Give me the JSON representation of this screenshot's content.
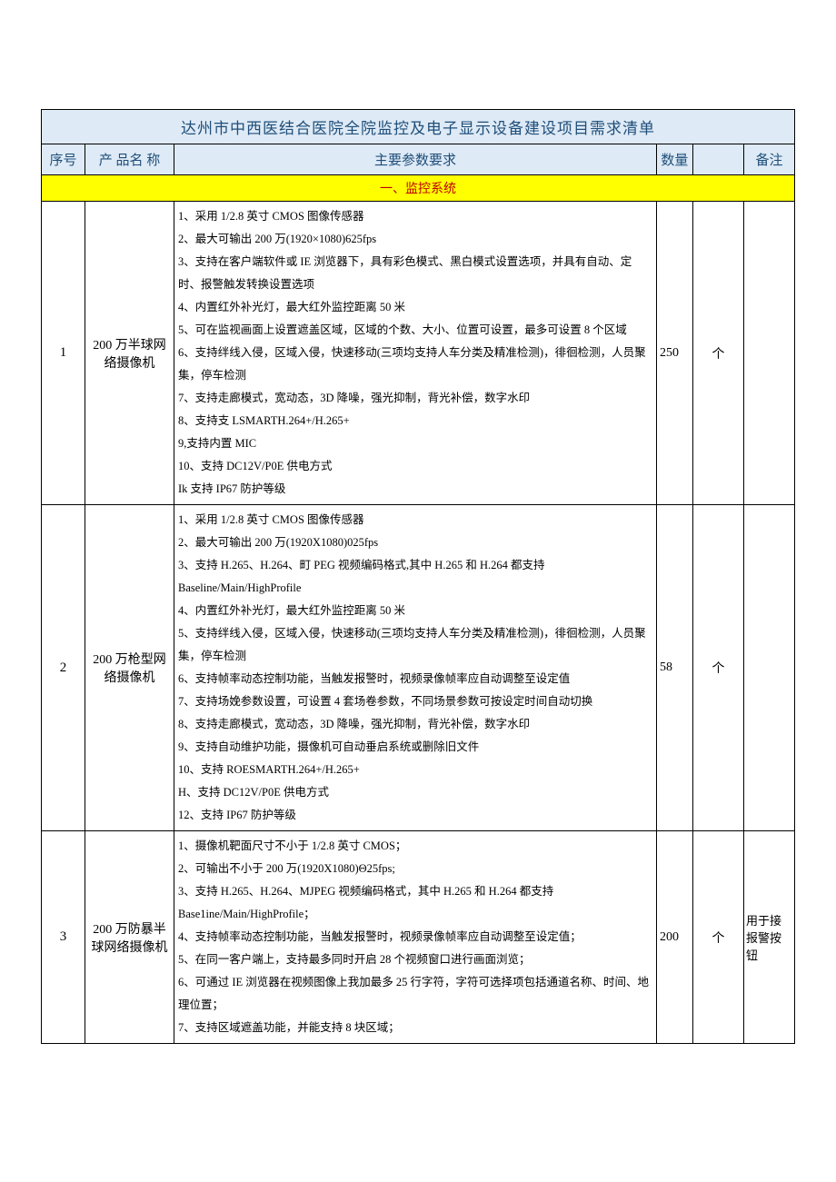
{
  "title": "达州市中西医结合医院全院监控及电子显示设备建设项目需求清单",
  "headers": {
    "seq": "序号",
    "name": "产 品名 称",
    "spec": "主要参数要求",
    "qty": "数量",
    "unit": "",
    "note": "备注"
  },
  "section1": "一、监控系统",
  "colors": {
    "header_bg": "#deeaf6",
    "header_text": "#1f4e79",
    "section_bg": "#ffff00",
    "section_text": "#c00000"
  },
  "rows": [
    {
      "seq": "1",
      "name": "200 万半球网络摄像机",
      "qty": "250",
      "unit": "个",
      "note": "",
      "specs": [
        "1、采用 1/2.8 英寸 CMOS 图像传感器",
        "2、最大可输出 200 万(1920×1080)625fps",
        "3、支持在客户端软件或 IE 浏览器下，具有彩色模式、黑白模式设置选项，并具有自动、定时、报警触发转换设置选项",
        "4、内置红外补光灯，最大红外监控距离 50 米",
        "5、可在监视画面上设置遮盖区域，区域的个数、大小、位置可设置，最多可设置 8 个区域",
        "6、支持绊线入侵，区域入侵，快速移动(三项均支持人车分类及精准检测)，徘徊检测，人员聚集，停车检测",
        "7、支持走廊模式，宽动态，3D 降噪，强光抑制，背光补偿，数字水印",
        "8、支持支 LSMARTH.264+/H.265+",
        "9,支持内置 MIC",
        "10、支持 DC12V/P0E 供电方式",
        "Ik 支持 IP67 防护等级"
      ]
    },
    {
      "seq": "2",
      "name": "200 万枪型网络摄像机",
      "qty": "58",
      "unit": "个",
      "note": "",
      "specs": [
        "1、采用 1/2.8 英寸 CMOS 图像传感器",
        "2、最大可输出 200 万(1920X1080)025fps",
        "3、支持 H.265、H.264、町 PEG 视频编码格式,其中 H.265 和 H.264 都支持Baseline/Main/HighProfile",
        "4、内置红外补光灯，最大红外监控距离 50 米",
        "5、支持绊线入侵，区域入侵，快速移动(三项均支持人车分类及精准检测)，徘徊检测，人员聚集，停车检测",
        "6、支持帧率动态控制功能，当触发报警时，视频录像帧率应自动调整至设定值",
        "7、支持场娩参数设置，可设置 4 套场卷参数，不同场景参数可按设定时间自动切换",
        "8、支持走廊模式，宽动态，3D 降噪，强光抑制，背光补偿，数字水印",
        "9、支持自动维护功能，摄像机可自动垂启系统或删除旧文件",
        "10、支持 ROESMARTH.264+/H.265+",
        "H、支持 DC12V/P0E 供电方式",
        "12、支持 IP67 防护等级"
      ]
    },
    {
      "seq": "3",
      "name": "200 万防暴半球网络摄像机",
      "qty": "200",
      "unit": "个",
      "note": "用于接报警按钮",
      "specs": [
        "1、摄像机靶面尺寸不小于 1/2.8 英寸 CMOS；",
        "2、可输出不小于 200 万(1920X1080)Θ25fps;",
        "3、支持 H.265、H.264、MJPEG 视频编码格式，其中 H.265 和 H.264 都支持Base1ine/Main/HighProfile；",
        "4、支持帧率动态控制功能，当触发报警时，视频录像帧率应自动调整至设定值；",
        "5、在同一客户端上，支持最多同时开启 28 个视频窗口进行画面浏览；",
        "6、可通过 IE 浏览器在视频图像上我加最多 25 行字符，字符可选择项包括通道名称、时间、地理位置；",
        "7、支持区域遮盖功能，并能支持 8 块区域；"
      ]
    }
  ]
}
